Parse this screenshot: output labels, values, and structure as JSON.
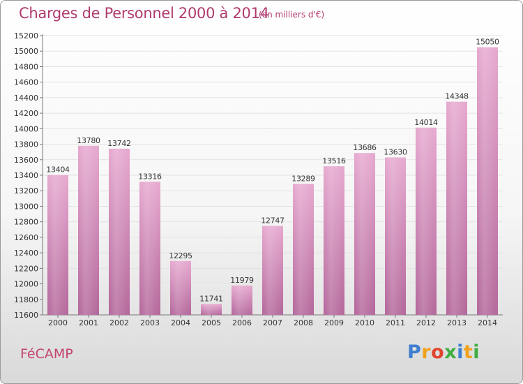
{
  "header": {
    "title": "Charges de Personnel 2000 à 2014",
    "subtitle": "(en milliers d'€)"
  },
  "footer": {
    "city": "FéCAMP",
    "logo_letters": [
      {
        "ch": "P",
        "color": "#3d7fd0"
      },
      {
        "ch": "r",
        "color": "#f0a21c"
      },
      {
        "ch": "o",
        "color": "#e0452e"
      },
      {
        "ch": "x",
        "color": "#3fae42"
      },
      {
        "ch": "i",
        "color": "#3d7fd0"
      },
      {
        "ch": "t",
        "color": "#f0a21c"
      },
      {
        "ch": "i",
        "color": "#3fae42"
      }
    ]
  },
  "chart_data": {
    "type": "bar",
    "title": "Charges de Personnel 2000 à 2014",
    "subtitle": "(en milliers d'€)",
    "categories": [
      "2000",
      "2001",
      "2002",
      "2003",
      "2004",
      "2005",
      "2006",
      "2007",
      "2008",
      "2009",
      "2010",
      "2011",
      "2012",
      "2013",
      "2014"
    ],
    "values": [
      13404,
      13780,
      13742,
      13316,
      12295,
      11741,
      11979,
      12747,
      13289,
      13516,
      13686,
      13630,
      14014,
      14348,
      15050
    ],
    "ylim": [
      11600,
      15200
    ],
    "yticks": [
      "11600",
      "11800",
      "12000",
      "12200",
      "12400",
      "12600",
      "12800",
      "13000",
      "13200",
      "13400",
      "13600",
      "13800",
      "14000",
      "14200",
      "14400",
      "14600",
      "14800",
      "15000",
      "15200"
    ],
    "grid": true,
    "bar_color_top": "#e6a8cf",
    "bar_color_bottom": "#b3669a"
  }
}
